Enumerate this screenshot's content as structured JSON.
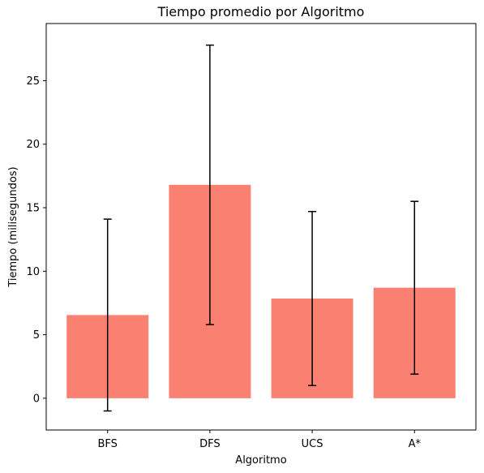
{
  "chart_data": {
    "type": "bar",
    "title": "Tiempo promedio por Algoritmo",
    "xlabel": "Algoritmo",
    "ylabel": "Tiempo (milisegundos)",
    "categories": [
      "BFS",
      "DFS",
      "UCS",
      "A*"
    ],
    "values": [
      6.55,
      16.8,
      7.85,
      8.7
    ],
    "error": [
      7.55,
      11.0,
      6.85,
      6.8
    ],
    "ylim": [
      -2.5,
      29.5
    ],
    "yticks": [
      0,
      5,
      10,
      15,
      20,
      25
    ],
    "bar_color": "#fa8072",
    "errorbar_color": "#000000",
    "grid": false,
    "legend": "none"
  }
}
